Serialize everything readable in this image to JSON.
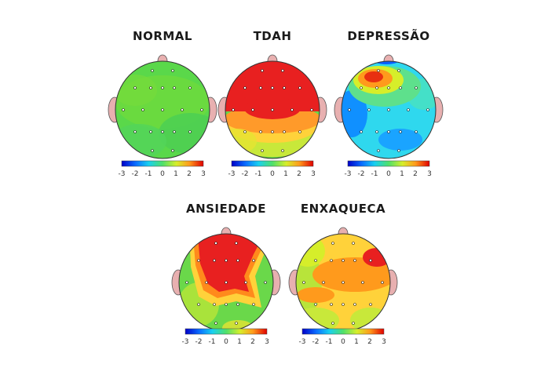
{
  "scale": {
    "min": -3,
    "max": 3,
    "tick_labels": [
      "-3",
      "-2",
      "-1",
      "0",
      "1",
      "2",
      "3"
    ],
    "colors": [
      "#0000c8",
      "#0a6cff",
      "#18d0f0",
      "#4fe06a",
      "#d6ee2a",
      "#ff9a1c",
      "#e00000"
    ]
  },
  "maps": [
    {
      "title": "NORMAL",
      "dominant_level": 0.0,
      "pattern": "uniform green"
    },
    {
      "title": "TDAH",
      "dominant_level": 3.0,
      "pattern": "red frontal, yellow/green posterior"
    },
    {
      "title": "DEPRESSÃO",
      "dominant_level": -1.5,
      "pattern": "cyan/blue with orange focal left frontal"
    },
    {
      "title": "ANSIEDADE",
      "dominant_level": 3.0,
      "pattern": "red central, green periphery"
    },
    {
      "title": "ENXAQUECA",
      "dominant_level": 2.0,
      "pattern": "orange/yellow mixed, red right frontal"
    }
  ]
}
